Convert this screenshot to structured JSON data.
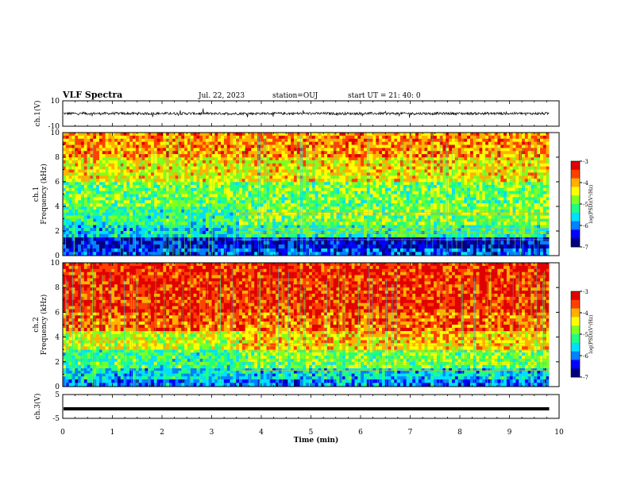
{
  "header": {
    "title": "VLF Spectra",
    "date": "Jul. 22, 2023",
    "station": "station=OUJ",
    "start": "start UT = 21: 40: 0"
  },
  "colors": {
    "jet": [
      "#000080",
      "#0000ff",
      "#0080ff",
      "#00e0ff",
      "#20ff80",
      "#80ff20",
      "#ffff00",
      "#ffb000",
      "#ff4000",
      "#e00000"
    ]
  },
  "chart_data": [
    {
      "type": "line",
      "id": "ch1-waveform",
      "ylabel": "ch.1(V)",
      "ylim": [
        -10,
        10
      ],
      "yticks": [
        10,
        -10
      ],
      "xlim": [
        0,
        10
      ],
      "baseline": 0,
      "noise_band": [
        -1,
        1
      ],
      "data_end_min": 9.8
    },
    {
      "type": "heatmap",
      "id": "ch1-spectrogram",
      "ylabel_channel": "ch.1",
      "ylabel": "Frequency (kHz)",
      "ylim": [
        0,
        10
      ],
      "yticks": [
        0,
        2,
        4,
        6,
        8,
        10
      ],
      "xlim": [
        0,
        10
      ],
      "data_end_min": 9.8,
      "colorbar": {
        "label": "log(PSD)(V²/Hz)",
        "range": [
          -7,
          -3
        ],
        "ticks": [
          -3,
          -4,
          -5,
          -6,
          -7
        ]
      },
      "rows_kHz": [
        {
          "f": [
            0,
            0.6
          ],
          "level": -6.2
        },
        {
          "f": [
            0.6,
            1.5
          ],
          "level": -6.6
        },
        {
          "f": [
            1.5,
            2.5
          ],
          "level": -5.6
        },
        {
          "f": [
            2.5,
            4
          ],
          "level": -5.2
        },
        {
          "f": [
            4,
            6
          ],
          "level": -4.9
        },
        {
          "f": [
            6,
            8
          ],
          "level": -4.3
        },
        {
          "f": [
            8,
            10
          ],
          "level": -3.9
        }
      ]
    },
    {
      "type": "heatmap",
      "id": "ch2-spectrogram",
      "ylabel_channel": "ch.2",
      "ylabel": "Frequency (kHz)",
      "ylim": [
        0,
        10
      ],
      "yticks": [
        0,
        2,
        4,
        6,
        8,
        10
      ],
      "xlim": [
        0,
        10
      ],
      "data_end_min": 9.8,
      "colorbar": {
        "label": "log(PSD)(V²/Hz)",
        "range": [
          -7,
          -3
        ],
        "ticks": [
          -3,
          -4,
          -5,
          -6,
          -7
        ]
      },
      "rows_kHz": [
        {
          "f": [
            0,
            0.6
          ],
          "level": -6.0
        },
        {
          "f": [
            0.6,
            1.5
          ],
          "level": -5.6
        },
        {
          "f": [
            1.5,
            3
          ],
          "level": -5.2
        },
        {
          "f": [
            3,
            4.5
          ],
          "level": -4.5
        },
        {
          "f": [
            4.5,
            6
          ],
          "level": -3.7
        },
        {
          "f": [
            6,
            10
          ],
          "level": -3.4
        }
      ]
    },
    {
      "type": "line",
      "id": "ch3-waveform",
      "ylabel": "ch.3(V)",
      "ylim": [
        -5,
        5
      ],
      "yticks": [
        5,
        -5
      ],
      "xlim": [
        0,
        10
      ],
      "baseline": -1,
      "data_end_min": 9.8,
      "xlabel": "Time (min)",
      "xticks": [
        0,
        1,
        2,
        3,
        4,
        5,
        6,
        7,
        8,
        9,
        10
      ]
    }
  ]
}
